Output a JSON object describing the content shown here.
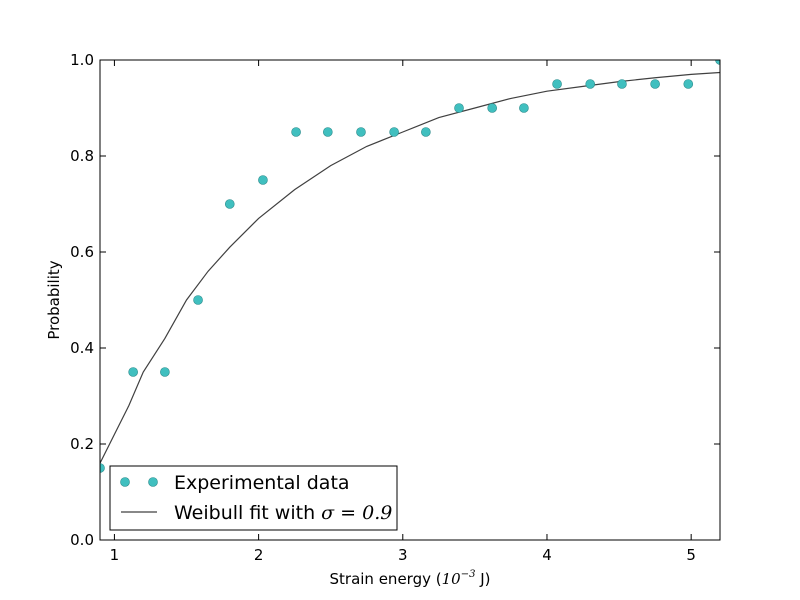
{
  "chart_data": {
    "type": "scatter",
    "xlabel_prefix": "Strain energy (",
    "xlabel_math": "10",
    "xlabel_exp": "−3",
    "xlabel_suffix": " J)",
    "ylabel": "Probability",
    "xlim": [
      0.9,
      5.2
    ],
    "ylim": [
      0.0,
      1.0
    ],
    "x_ticks": [
      1,
      2,
      3,
      4,
      5
    ],
    "x_tick_labels": [
      "1",
      "2",
      "3",
      "4",
      "5"
    ],
    "y_ticks": [
      0.0,
      0.2,
      0.4,
      0.6,
      0.8,
      1.0
    ],
    "y_tick_labels": [
      "0.0",
      "0.2",
      "0.4",
      "0.6",
      "0.8",
      "1.0"
    ],
    "grid": false,
    "legend_position": "lower-left",
    "series": [
      {
        "name": "Experimental data",
        "kind": "scatter",
        "color": "#40bfbf",
        "x": [
          0.9,
          1.13,
          1.35,
          1.58,
          1.8,
          2.03,
          2.26,
          2.48,
          2.71,
          2.94,
          3.16,
          3.39,
          3.62,
          3.84,
          4.07,
          4.3,
          4.52,
          4.75,
          4.98,
          5.2
        ],
        "y": [
          0.15,
          0.35,
          0.35,
          0.5,
          0.7,
          0.75,
          0.85,
          0.85,
          0.85,
          0.85,
          0.85,
          0.9,
          0.9,
          0.9,
          0.95,
          0.95,
          0.95,
          0.95,
          0.95,
          1.0
        ]
      },
      {
        "name_prefix": "Weibull fit with ",
        "name_math": "σ = 0.9",
        "kind": "line",
        "color": "#404040",
        "x": [
          0.9,
          1.0,
          1.1,
          1.2,
          1.35,
          1.5,
          1.65,
          1.8,
          2.0,
          2.25,
          2.5,
          2.75,
          3.0,
          3.25,
          3.5,
          3.75,
          4.0,
          4.25,
          4.5,
          4.75,
          5.0,
          5.2
        ],
        "y": [
          0.16,
          0.22,
          0.28,
          0.35,
          0.42,
          0.5,
          0.56,
          0.61,
          0.67,
          0.73,
          0.78,
          0.82,
          0.85,
          0.88,
          0.9,
          0.92,
          0.935,
          0.945,
          0.955,
          0.963,
          0.97,
          0.974
        ]
      }
    ]
  }
}
